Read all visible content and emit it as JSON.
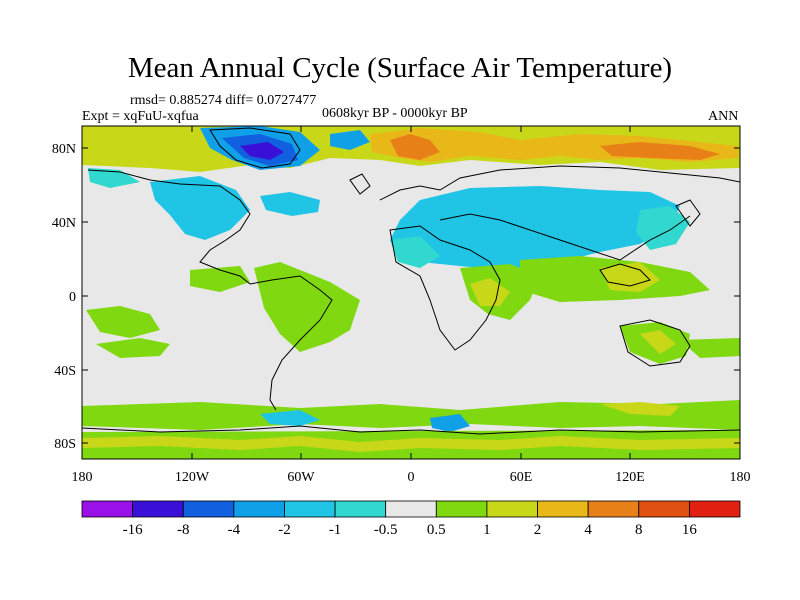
{
  "title": "Mean Annual Cycle (Surface Air Temperature)",
  "stats": "rmsd= 0.885274 diff= 0.0727477",
  "experiment": "Expt = xqFuU-xqfua",
  "period": "0608kyr BP - 0000kyr BP",
  "season": "ANN",
  "lat_labels": [
    "80N",
    "40N",
    "0",
    "40S",
    "80S"
  ],
  "lon_labels": [
    "180",
    "120W",
    "60W",
    "0",
    "60E",
    "120E",
    "180"
  ],
  "colorbar": {
    "colors": [
      "#9a10e8",
      "#3a10d8",
      "#1060e0",
      "#10a0e8",
      "#20c4e4",
      "#30d8d0",
      "#e8e8e8",
      "#80d810",
      "#c8d818",
      "#e8b818",
      "#e88018",
      "#e05010",
      "#e02010"
    ],
    "labels": [
      "-16",
      "-8",
      "-4",
      "-2",
      "-1",
      "-0.5",
      "0.5",
      "1",
      "2",
      "4",
      "8",
      "16"
    ]
  },
  "field_colors": {
    "neutral": "#e8e8e8",
    "weak_pos": "#80d810",
    "pos": "#c8d818",
    "strong_pos": "#e8b818",
    "very_strong_pos": "#e88018",
    "weak_neg": "#30d8d0",
    "neg": "#20c4e4",
    "strong_neg": "#10a0e8",
    "very_strong_neg": "#1060e0",
    "extreme_neg": "#3a10d8"
  }
}
